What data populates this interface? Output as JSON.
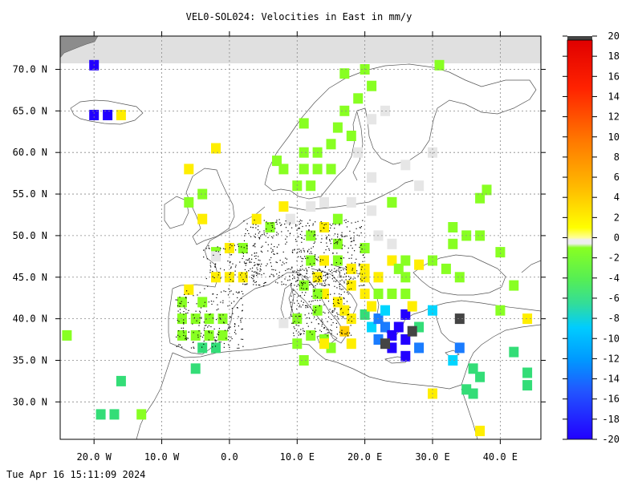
{
  "title": "VEL0-SOL024: Velocities in East in mm/y",
  "timestamp": "Tue Apr 16 15:11:09 2024",
  "map": {
    "lon_range": [
      -25,
      46
    ],
    "lat_range": [
      25.5,
      74
    ],
    "lat_ticks": [
      {
        "value": 70,
        "label": "70.0 N"
      },
      {
        "value": 65,
        "label": "65.0 N"
      },
      {
        "value": 60,
        "label": "60.0 N"
      },
      {
        "value": 55,
        "label": "55.0 N"
      },
      {
        "value": 50,
        "label": "50.0 N"
      },
      {
        "value": 45,
        "label": "45.0 N"
      },
      {
        "value": 40,
        "label": "40.0 N"
      },
      {
        "value": 35,
        "label": "35.0 N"
      },
      {
        "value": 30,
        "label": "30.0 N"
      }
    ],
    "lon_ticks": [
      {
        "value": -20,
        "label": "20.0 W"
      },
      {
        "value": -10,
        "label": "10.0 W"
      },
      {
        "value": 0,
        "label": "0.0"
      },
      {
        "value": 10,
        "label": "10.0 E"
      },
      {
        "value": 20,
        "label": "20.0 E"
      },
      {
        "value": 30,
        "label": "30.0 E"
      },
      {
        "value": 40,
        "label": "40.0 E"
      }
    ],
    "grid": true
  },
  "colorbar": {
    "min": -20,
    "max": 20,
    "labels": [
      "20",
      "18",
      "16",
      "14",
      "12",
      "10",
      "8",
      "6",
      "4",
      "2",
      "0",
      "-2",
      "-4",
      "-6",
      "-8",
      "-10",
      "-12",
      "-14",
      "-16",
      "-18",
      "-20"
    ],
    "colors": {
      "low": "#2200ff",
      "blue": "#1a7cff",
      "cyan": "#00d5ff",
      "green": "#33dd77",
      "lime": "#88ff22",
      "white": "#e6e6e6",
      "yellow": "#ffee00",
      "orange": "#ff8800",
      "red": "#ff2200",
      "high": "#dd0000",
      "dark": "#444444"
    }
  },
  "cells": [
    {
      "lon": -20,
      "lat": 70.5,
      "v": -18
    },
    {
      "lon": -20,
      "lat": 64.5,
      "v": -17
    },
    {
      "lon": -18,
      "lat": 64.5,
      "v": -18
    },
    {
      "lon": -16,
      "lat": 64.5,
      "v": 4
    },
    {
      "lon": -2,
      "lat": 60.5,
      "v": 4
    },
    {
      "lon": -6,
      "lat": 58,
      "v": 4
    },
    {
      "lon": -4,
      "lat": 55,
      "v": -2
    },
    {
      "lon": -4,
      "lat": 52,
      "v": 3
    },
    {
      "lon": -6,
      "lat": 54,
      "v": -2
    },
    {
      "lon": 4,
      "lat": 52,
      "v": 3
    },
    {
      "lon": 2,
      "lat": 48.5,
      "v": -2
    },
    {
      "lon": 0,
      "lat": 48.5,
      "v": 4
    },
    {
      "lon": -2,
      "lat": 48,
      "v": -2
    },
    {
      "lon": -2,
      "lat": 45,
      "v": 4
    },
    {
      "lon": 0,
      "lat": 45,
      "v": 3
    },
    {
      "lon": 2,
      "lat": 45,
      "v": 3
    },
    {
      "lon": -6,
      "lat": 43.5,
      "v": 4
    },
    {
      "lon": -4,
      "lat": 42,
      "v": -2
    },
    {
      "lon": -7,
      "lat": 42,
      "v": -2
    },
    {
      "lon": -7,
      "lat": 40,
      "v": -2
    },
    {
      "lon": -5,
      "lat": 40,
      "v": -2
    },
    {
      "lon": -3,
      "lat": 40,
      "v": -2
    },
    {
      "lon": -1,
      "lat": 40,
      "v": -2
    },
    {
      "lon": -7,
      "lat": 38,
      "v": -2
    },
    {
      "lon": -5,
      "lat": 38,
      "v": -2
    },
    {
      "lon": -3,
      "lat": 38,
      "v": -2
    },
    {
      "lon": -1,
      "lat": 38,
      "v": -2
    },
    {
      "lon": -4,
      "lat": 36.5,
      "v": -4
    },
    {
      "lon": -2,
      "lat": 36.5,
      "v": -3
    },
    {
      "lon": -5,
      "lat": 34,
      "v": -4
    },
    {
      "lon": -24,
      "lat": 38,
      "v": -2
    },
    {
      "lon": -16,
      "lat": 32.5,
      "v": -4
    },
    {
      "lon": -17,
      "lat": 28.5,
      "v": -3
    },
    {
      "lon": -19,
      "lat": 28.5,
      "v": -3
    },
    {
      "lon": -13,
      "lat": 28.5,
      "v": -2
    },
    {
      "lon": 6,
      "lat": 51,
      "v": -2
    },
    {
      "lon": 8,
      "lat": 53.5,
      "v": 3
    },
    {
      "lon": 10,
      "lat": 56,
      "v": -2
    },
    {
      "lon": 12,
      "lat": 56,
      "v": -2
    },
    {
      "lon": 7,
      "lat": 59,
      "v": -2
    },
    {
      "lon": 8,
      "lat": 58,
      "v": -2
    },
    {
      "lon": 11,
      "lat": 58,
      "v": -2
    },
    {
      "lon": 13,
      "lat": 58,
      "v": -2
    },
    {
      "lon": 15,
      "lat": 58,
      "v": -2
    },
    {
      "lon": 11,
      "lat": 60,
      "v": -2
    },
    {
      "lon": 13,
      "lat": 60,
      "v": -2
    },
    {
      "lon": 15,
      "lat": 61,
      "v": -2
    },
    {
      "lon": 16,
      "lat": 63,
      "v": -2
    },
    {
      "lon": 11,
      "lat": 63.5,
      "v": -2
    },
    {
      "lon": 17,
      "lat": 65,
      "v": -2
    },
    {
      "lon": 19,
      "lat": 66.5,
      "v": -2
    },
    {
      "lon": 21,
      "lat": 68,
      "v": -2
    },
    {
      "lon": 17,
      "lat": 69.5,
      "v": -2
    },
    {
      "lon": 20,
      "lat": 70,
      "v": -2
    },
    {
      "lon": 31,
      "lat": 70.5,
      "v": -2
    },
    {
      "lon": 18,
      "lat": 62,
      "v": -2
    },
    {
      "lon": 24,
      "lat": 54,
      "v": -2
    },
    {
      "lon": 12,
      "lat": 50,
      "v": -2
    },
    {
      "lon": 14,
      "lat": 51,
      "v": 3
    },
    {
      "lon": 16,
      "lat": 52,
      "v": -2
    },
    {
      "lon": 16,
      "lat": 49,
      "v": -2
    },
    {
      "lon": 12,
      "lat": 47,
      "v": -2
    },
    {
      "lon": 14,
      "lat": 47,
      "v": 4
    },
    {
      "lon": 16,
      "lat": 47,
      "v": -2
    },
    {
      "lon": 20,
      "lat": 48.5,
      "v": -2
    },
    {
      "lon": 18,
      "lat": 46,
      "v": 3
    },
    {
      "lon": 20,
      "lat": 45,
      "v": 3
    },
    {
      "lon": 22,
      "lat": 45,
      "v": 3
    },
    {
      "lon": 18,
      "lat": 44,
      "v": 3
    },
    {
      "lon": 20,
      "lat": 43,
      "v": 2
    },
    {
      "lon": 22,
      "lat": 43,
      "v": -2
    },
    {
      "lon": 24,
      "lat": 43,
      "v": -2
    },
    {
      "lon": 26,
      "lat": 45,
      "v": -2
    },
    {
      "lon": 26,
      "lat": 43,
      "v": -2
    },
    {
      "lon": 28,
      "lat": 46.5,
      "v": 3
    },
    {
      "lon": 26,
      "lat": 47,
      "v": -2
    },
    {
      "lon": 24,
      "lat": 47,
      "v": 3
    },
    {
      "lon": 30,
      "lat": 47,
      "v": -2
    },
    {
      "lon": 32,
      "lat": 46,
      "v": -2
    },
    {
      "lon": 34,
      "lat": 45,
      "v": -2
    },
    {
      "lon": 35,
      "lat": 50,
      "v": -2
    },
    {
      "lon": 37,
      "lat": 50,
      "v": -2
    },
    {
      "lon": 33,
      "lat": 51,
      "v": -2
    },
    {
      "lon": 33,
      "lat": 49,
      "v": -2
    },
    {
      "lon": 40,
      "lat": 48,
      "v": -2
    },
    {
      "lon": 38,
      "lat": 55.5,
      "v": -2
    },
    {
      "lon": 37,
      "lat": 54.5,
      "v": -2
    },
    {
      "lon": 24,
      "lat": 54,
      "v": -2
    },
    {
      "lon": 42,
      "lat": 44,
      "v": -2
    },
    {
      "lon": 40,
      "lat": 41,
      "v": -2
    },
    {
      "lon": 44,
      "lat": 40,
      "v": 3
    },
    {
      "lon": 13,
      "lat": 45,
      "v": 4
    },
    {
      "lon": 14,
      "lat": 43,
      "v": 4
    },
    {
      "lon": 16,
      "lat": 42,
      "v": 4
    },
    {
      "lon": 17,
      "lat": 41,
      "v": 4
    },
    {
      "lon": 18,
      "lat": 40,
      "v": 3
    },
    {
      "lon": 17,
      "lat": 38.5,
      "v": 5
    },
    {
      "lon": 13,
      "lat": 43,
      "v": -2
    },
    {
      "lon": 11,
      "lat": 44,
      "v": -2
    },
    {
      "lon": 13,
      "lat": 41,
      "v": -2
    },
    {
      "lon": 10,
      "lat": 40,
      "v": -2
    },
    {
      "lon": 12,
      "lat": 38,
      "v": -2
    },
    {
      "lon": 14,
      "lat": 37.5,
      "v": -2
    },
    {
      "lon": 15,
      "lat": 36.5,
      "v": -2
    },
    {
      "lon": 10,
      "lat": 37,
      "v": -2
    },
    {
      "lon": 11,
      "lat": 35,
      "v": -2
    },
    {
      "lon": 20,
      "lat": 40.5,
      "v": -4
    },
    {
      "lon": 21,
      "lat": 39,
      "v": -8
    },
    {
      "lon": 22,
      "lat": 40,
      "v": -10
    },
    {
      "lon": 23,
      "lat": 39,
      "v": -14
    },
    {
      "lon": 24,
      "lat": 38,
      "v": -16
    },
    {
      "lon": 25,
      "lat": 39,
      "v": -18
    },
    {
      "lon": 22,
      "lat": 37.5,
      "v": -14
    },
    {
      "lon": 24,
      "lat": 36.5,
      "v": -18
    },
    {
      "lon": 26,
      "lat": 35.5,
      "v": -17
    },
    {
      "lon": 26,
      "lat": 37.5,
      "v": -16
    },
    {
      "lon": 28,
      "lat": 36.5,
      "v": -13
    },
    {
      "lon": 26,
      "lat": 40.5,
      "v": -15
    },
    {
      "lon": 28,
      "lat": 39,
      "v": -4
    },
    {
      "lon": 23,
      "lat": 41,
      "v": -6
    },
    {
      "lon": 21,
      "lat": 41.5,
      "v": 3
    },
    {
      "lon": 27,
      "lat": 41.5,
      "v": 3
    },
    {
      "lon": 23,
      "lat": 37,
      "v": 99
    },
    {
      "lon": 27,
      "lat": 38.5,
      "v": 99
    },
    {
      "lon": 34,
      "lat": 40,
      "v": 99
    },
    {
      "lon": 30,
      "lat": 41,
      "v": -6
    },
    {
      "lon": 34,
      "lat": 36.5,
      "v": -12
    },
    {
      "lon": 33,
      "lat": 35,
      "v": -7
    },
    {
      "lon": 36,
      "lat": 34,
      "v": -4
    },
    {
      "lon": 37,
      "lat": 33,
      "v": -4
    },
    {
      "lon": 35,
      "lat": 31.5,
      "v": -4
    },
    {
      "lon": 36,
      "lat": 31,
      "v": -4
    },
    {
      "lon": 30,
      "lat": 31,
      "v": 3
    },
    {
      "lon": 37,
      "lat": 26.5,
      "v": 4
    },
    {
      "lon": 42,
      "lat": 36,
      "v": -4
    },
    {
      "lon": 44,
      "lat": 32,
      "v": -4
    },
    {
      "lon": 44,
      "lat": 33.5,
      "v": -4
    },
    {
      "lon": 25,
      "lat": 46,
      "v": -2
    },
    {
      "lon": 14,
      "lat": 37,
      "v": 4
    },
    {
      "lon": 18,
      "lat": 37,
      "v": 4
    },
    {
      "lon": 20,
      "lat": 46,
      "v": 4
    },
    {
      "lon": 8,
      "lat": 39.5,
      "v": 0
    },
    {
      "lon": -2,
      "lat": 47.5,
      "v": 0
    },
    {
      "lon": 19,
      "lat": 60,
      "v": 0
    },
    {
      "lon": 21,
      "lat": 64,
      "v": 0
    },
    {
      "lon": 23,
      "lat": 65,
      "v": 0
    },
    {
      "lon": 21,
      "lat": 57,
      "v": 0
    },
    {
      "lon": 26,
      "lat": 58.5,
      "v": 0
    },
    {
      "lon": 30,
      "lat": 60,
      "v": 0
    },
    {
      "lon": 28,
      "lat": 56,
      "v": 0
    },
    {
      "lon": 18,
      "lat": 54,
      "v": 0
    },
    {
      "lon": 21,
      "lat": 53,
      "v": 0
    },
    {
      "lon": 22,
      "lat": 50,
      "v": 0
    },
    {
      "lon": 24,
      "lat": 49,
      "v": 0
    },
    {
      "lon": 14,
      "lat": 54,
      "v": 0
    },
    {
      "lon": 12,
      "lat": 53.5,
      "v": 0
    },
    {
      "lon": 9,
      "lat": 52,
      "v": 0
    }
  ]
}
